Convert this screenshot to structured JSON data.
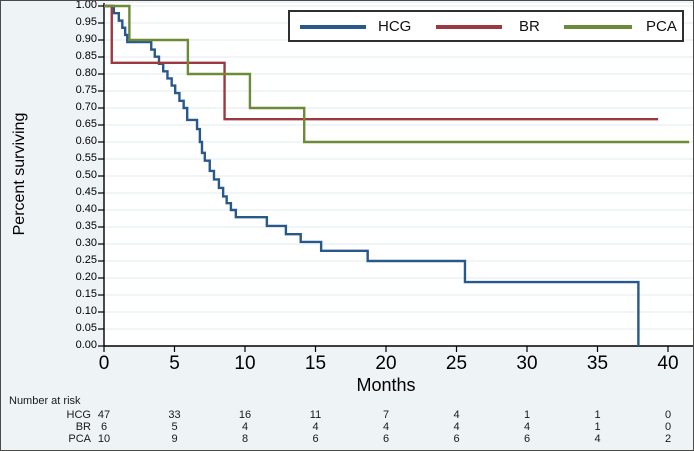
{
  "figure": {
    "margin_background": "#eef3f5",
    "plot_background": "#ffffff",
    "grid_color": "#e2edf0",
    "axis_color": "#000000",
    "border_color": "#4a4a4a"
  },
  "chart_data": {
    "type": "line",
    "subtype": "kaplan-meier-step",
    "title": "",
    "xlabel": "Months",
    "ylabel": "Percent surviving",
    "xlim": [
      0,
      41.8
    ],
    "ylim": [
      0,
      1
    ],
    "x_ticks": [
      0,
      5,
      10,
      15,
      20,
      25,
      30,
      35,
      40
    ],
    "y_ticks": [
      0,
      0.05,
      0.1,
      0.15,
      0.2,
      0.25,
      0.3,
      0.35,
      0.4,
      0.45,
      0.5,
      0.55,
      0.6,
      0.65,
      0.7,
      0.75,
      0.8,
      0.85,
      0.9,
      0.95,
      1
    ],
    "grid": "horizontal",
    "legend_position": "top-inside",
    "series": [
      {
        "name": "HCG",
        "color": "#29598a",
        "steps": [
          [
            0,
            1
          ],
          [
            0.7,
            0.979
          ],
          [
            1.05,
            0.957
          ],
          [
            1.3,
            0.936
          ],
          [
            1.5,
            0.915
          ],
          [
            1.65,
            0.894
          ],
          [
            3.35,
            0.872
          ],
          [
            3.6,
            0.851
          ],
          [
            3.9,
            0.83
          ],
          [
            4.2,
            0.808
          ],
          [
            4.5,
            0.787
          ],
          [
            4.8,
            0.766
          ],
          [
            5.05,
            0.744
          ],
          [
            5.35,
            0.721
          ],
          [
            5.65,
            0.7
          ],
          [
            5.9,
            0.665
          ],
          [
            6.6,
            0.638
          ],
          [
            6.8,
            0.6
          ],
          [
            6.95,
            0.568
          ],
          [
            7.15,
            0.545
          ],
          [
            7.5,
            0.515
          ],
          [
            7.8,
            0.49
          ],
          [
            8.15,
            0.465
          ],
          [
            8.45,
            0.44
          ],
          [
            8.7,
            0.42
          ],
          [
            9.0,
            0.4
          ],
          [
            9.35,
            0.379
          ],
          [
            11.55,
            0.353
          ],
          [
            12.9,
            0.329
          ],
          [
            13.95,
            0.306
          ],
          [
            15.4,
            0.28
          ],
          [
            18.7,
            0.25
          ],
          [
            25.6,
            0.188
          ],
          [
            37.9,
            0
          ]
        ]
      },
      {
        "name": "BR",
        "color": "#9a3a40",
        "steps": [
          [
            0,
            1
          ],
          [
            0.55,
            0.833
          ],
          [
            8.55,
            0.667
          ],
          [
            39.3,
            0.667
          ]
        ]
      },
      {
        "name": "PCA",
        "color": "#6c8b37",
        "steps": [
          [
            0,
            1
          ],
          [
            1.8,
            0.9
          ],
          [
            5.95,
            0.8
          ],
          [
            10.35,
            0.7
          ],
          [
            14.2,
            0.6
          ],
          [
            41.5,
            0.6
          ]
        ]
      }
    ]
  },
  "risk_table": {
    "title": "Number at risk",
    "columns": [
      0,
      5,
      10,
      15,
      20,
      25,
      30,
      35,
      40
    ],
    "rows": [
      {
        "label": "HCG",
        "values": [
          47,
          33,
          16,
          11,
          7,
          4,
          1,
          1,
          0
        ]
      },
      {
        "label": "BR",
        "values": [
          6,
          5,
          4,
          4,
          4,
          4,
          4,
          1,
          0
        ]
      },
      {
        "label": "PCA",
        "values": [
          10,
          9,
          8,
          6,
          6,
          6,
          6,
          4,
          2
        ]
      }
    ]
  }
}
